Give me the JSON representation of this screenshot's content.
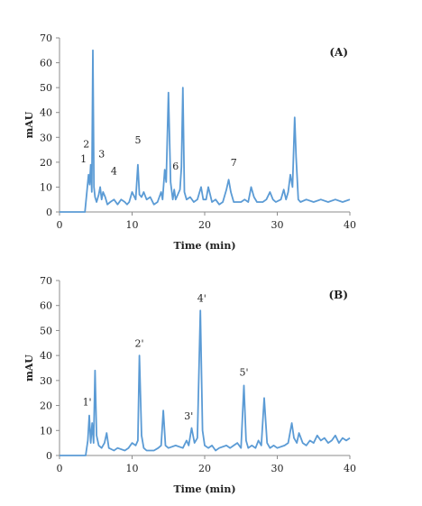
{
  "chart_data": [
    {
      "type": "line",
      "panel_label": "(A)",
      "xlabel": "Time (min)",
      "ylabel": "mAU",
      "xlim": [
        0,
        40
      ],
      "ylim": [
        0,
        70
      ],
      "xticks": [
        0,
        10,
        20,
        30,
        40
      ],
      "yticks": [
        0,
        10,
        20,
        30,
        40,
        50,
        60,
        70
      ],
      "grid": false,
      "line_color": "#5b9bd5",
      "series": [
        {
          "x": [
            0,
            3.5,
            3.8,
            4.0,
            4.15,
            4.3,
            4.45,
            4.6,
            4.75,
            4.9,
            5.1,
            5.4,
            5.6,
            5.8,
            6.0,
            6.3,
            6.6,
            7.0,
            7.5,
            8.0,
            8.5,
            9.0,
            9.3,
            9.6,
            10.0,
            10.5,
            10.8,
            11.0,
            11.3,
            11.6,
            12.0,
            12.5,
            13.0,
            13.5,
            14.0,
            14.2,
            14.5,
            14.7,
            15.0,
            15.3,
            15.6,
            15.8,
            16.0,
            16.3,
            16.6,
            16.8,
            17.0,
            17.2,
            17.5,
            18.0,
            18.5,
            19.0,
            19.5,
            19.8,
            20.2,
            20.5,
            21.0,
            21.5,
            22.0,
            22.5,
            23.0,
            23.3,
            23.6,
            24.0,
            24.5,
            25.0,
            25.5,
            26.0,
            26.4,
            26.8,
            27.2,
            28.0,
            28.5,
            29.0,
            29.4,
            29.8,
            30.5,
            30.9,
            31.2,
            31.5,
            31.8,
            32.1,
            32.4,
            32.6,
            32.9,
            33.2,
            34.0,
            35.0,
            36.0,
            37.0,
            38.0,
            39.0,
            40.0
          ],
          "y": [
            0,
            0,
            9,
            15,
            11,
            19,
            8,
            65,
            10,
            6,
            4,
            7,
            10,
            5,
            8,
            6,
            3,
            4,
            5,
            3,
            5,
            4,
            3,
            4,
            8,
            5,
            19,
            7,
            6,
            8,
            5,
            6,
            3,
            4,
            8,
            5,
            17,
            12,
            48,
            12,
            5,
            9,
            5,
            7,
            9,
            18,
            50,
            8,
            5,
            6,
            4,
            5,
            10,
            5,
            5,
            10,
            4,
            5,
            3,
            4,
            9,
            13,
            8,
            4,
            4,
            4,
            5,
            4,
            10,
            6,
            4,
            4,
            5,
            8,
            5,
            4,
            5,
            9,
            5,
            8,
            15,
            10,
            38,
            22,
            5,
            4,
            5,
            4,
            5,
            4,
            5,
            4,
            5
          ]
        }
      ],
      "annotations": [
        {
          "text": "1",
          "x": 3.3,
          "y": 20
        },
        {
          "text": "2",
          "x": 3.7,
          "y": 26
        },
        {
          "text": "3",
          "x": 5.8,
          "y": 22
        },
        {
          "text": "4",
          "x": 7.5,
          "y": 15
        },
        {
          "text": "5",
          "x": 10.8,
          "y": 27.5
        },
        {
          "text": "6",
          "x": 16.0,
          "y": 17
        },
        {
          "text": "7",
          "x": 24.0,
          "y": 18.5
        }
      ]
    },
    {
      "type": "line",
      "panel_label": "(B)",
      "xlabel": "Time (min)",
      "ylabel": "mAU",
      "xlim": [
        0,
        40
      ],
      "ylim": [
        0,
        70
      ],
      "xticks": [
        0,
        10,
        20,
        30,
        40
      ],
      "yticks": [
        0,
        10,
        20,
        30,
        40,
        50,
        60,
        70
      ],
      "grid": false,
      "line_color": "#5b9bd5",
      "series": [
        {
          "x": [
            0,
            3.6,
            3.9,
            4.1,
            4.3,
            4.5,
            4.7,
            4.9,
            5.1,
            5.4,
            5.8,
            6.2,
            6.5,
            6.8,
            7.5,
            8.0,
            9.0,
            9.5,
            10.0,
            10.5,
            10.8,
            11.0,
            11.3,
            11.6,
            12.0,
            13.0,
            13.6,
            14.0,
            14.3,
            14.6,
            15.0,
            16.0,
            17.0,
            17.5,
            17.8,
            18.2,
            18.6,
            19.0,
            19.4,
            19.7,
            20.0,
            20.5,
            21.0,
            21.5,
            22.0,
            23.0,
            23.5,
            24.0,
            24.5,
            25.0,
            25.4,
            25.7,
            26.0,
            26.5,
            27.0,
            27.4,
            27.8,
            28.2,
            28.6,
            29.0,
            29.5,
            30.0,
            31.0,
            31.5,
            32.0,
            32.3,
            32.7,
            33.0,
            33.5,
            34.0,
            34.5,
            35.0,
            35.5,
            36.0,
            36.5,
            37.0,
            37.5,
            38.0,
            38.5,
            39.0,
            39.5,
            40.0
          ],
          "y": [
            0,
            0,
            6,
            16,
            5,
            13,
            5,
            34,
            8,
            4,
            3,
            5,
            9,
            3,
            2,
            3,
            2,
            3,
            5,
            4,
            6,
            40,
            8,
            3,
            2,
            2,
            3,
            4,
            18,
            4,
            3,
            4,
            3,
            6,
            4,
            11,
            5,
            7,
            58,
            10,
            4,
            3,
            4,
            2,
            3,
            4,
            3,
            4,
            5,
            3,
            28,
            6,
            3,
            4,
            3,
            6,
            4,
            23,
            5,
            3,
            4,
            3,
            4,
            5,
            13,
            7,
            5,
            9,
            5,
            4,
            6,
            5,
            8,
            6,
            7,
            5,
            6,
            8,
            5,
            7,
            6,
            7
          ]
        }
      ],
      "annotations": [
        {
          "text": "1'",
          "x": 3.8,
          "y": 20
        },
        {
          "text": "2'",
          "x": 11.0,
          "y": 43.5
        },
        {
          "text": "3'",
          "x": 17.8,
          "y": 14.5
        },
        {
          "text": "4'",
          "x": 19.6,
          "y": 61.5
        },
        {
          "text": "5'",
          "x": 25.4,
          "y": 32
        }
      ]
    }
  ]
}
